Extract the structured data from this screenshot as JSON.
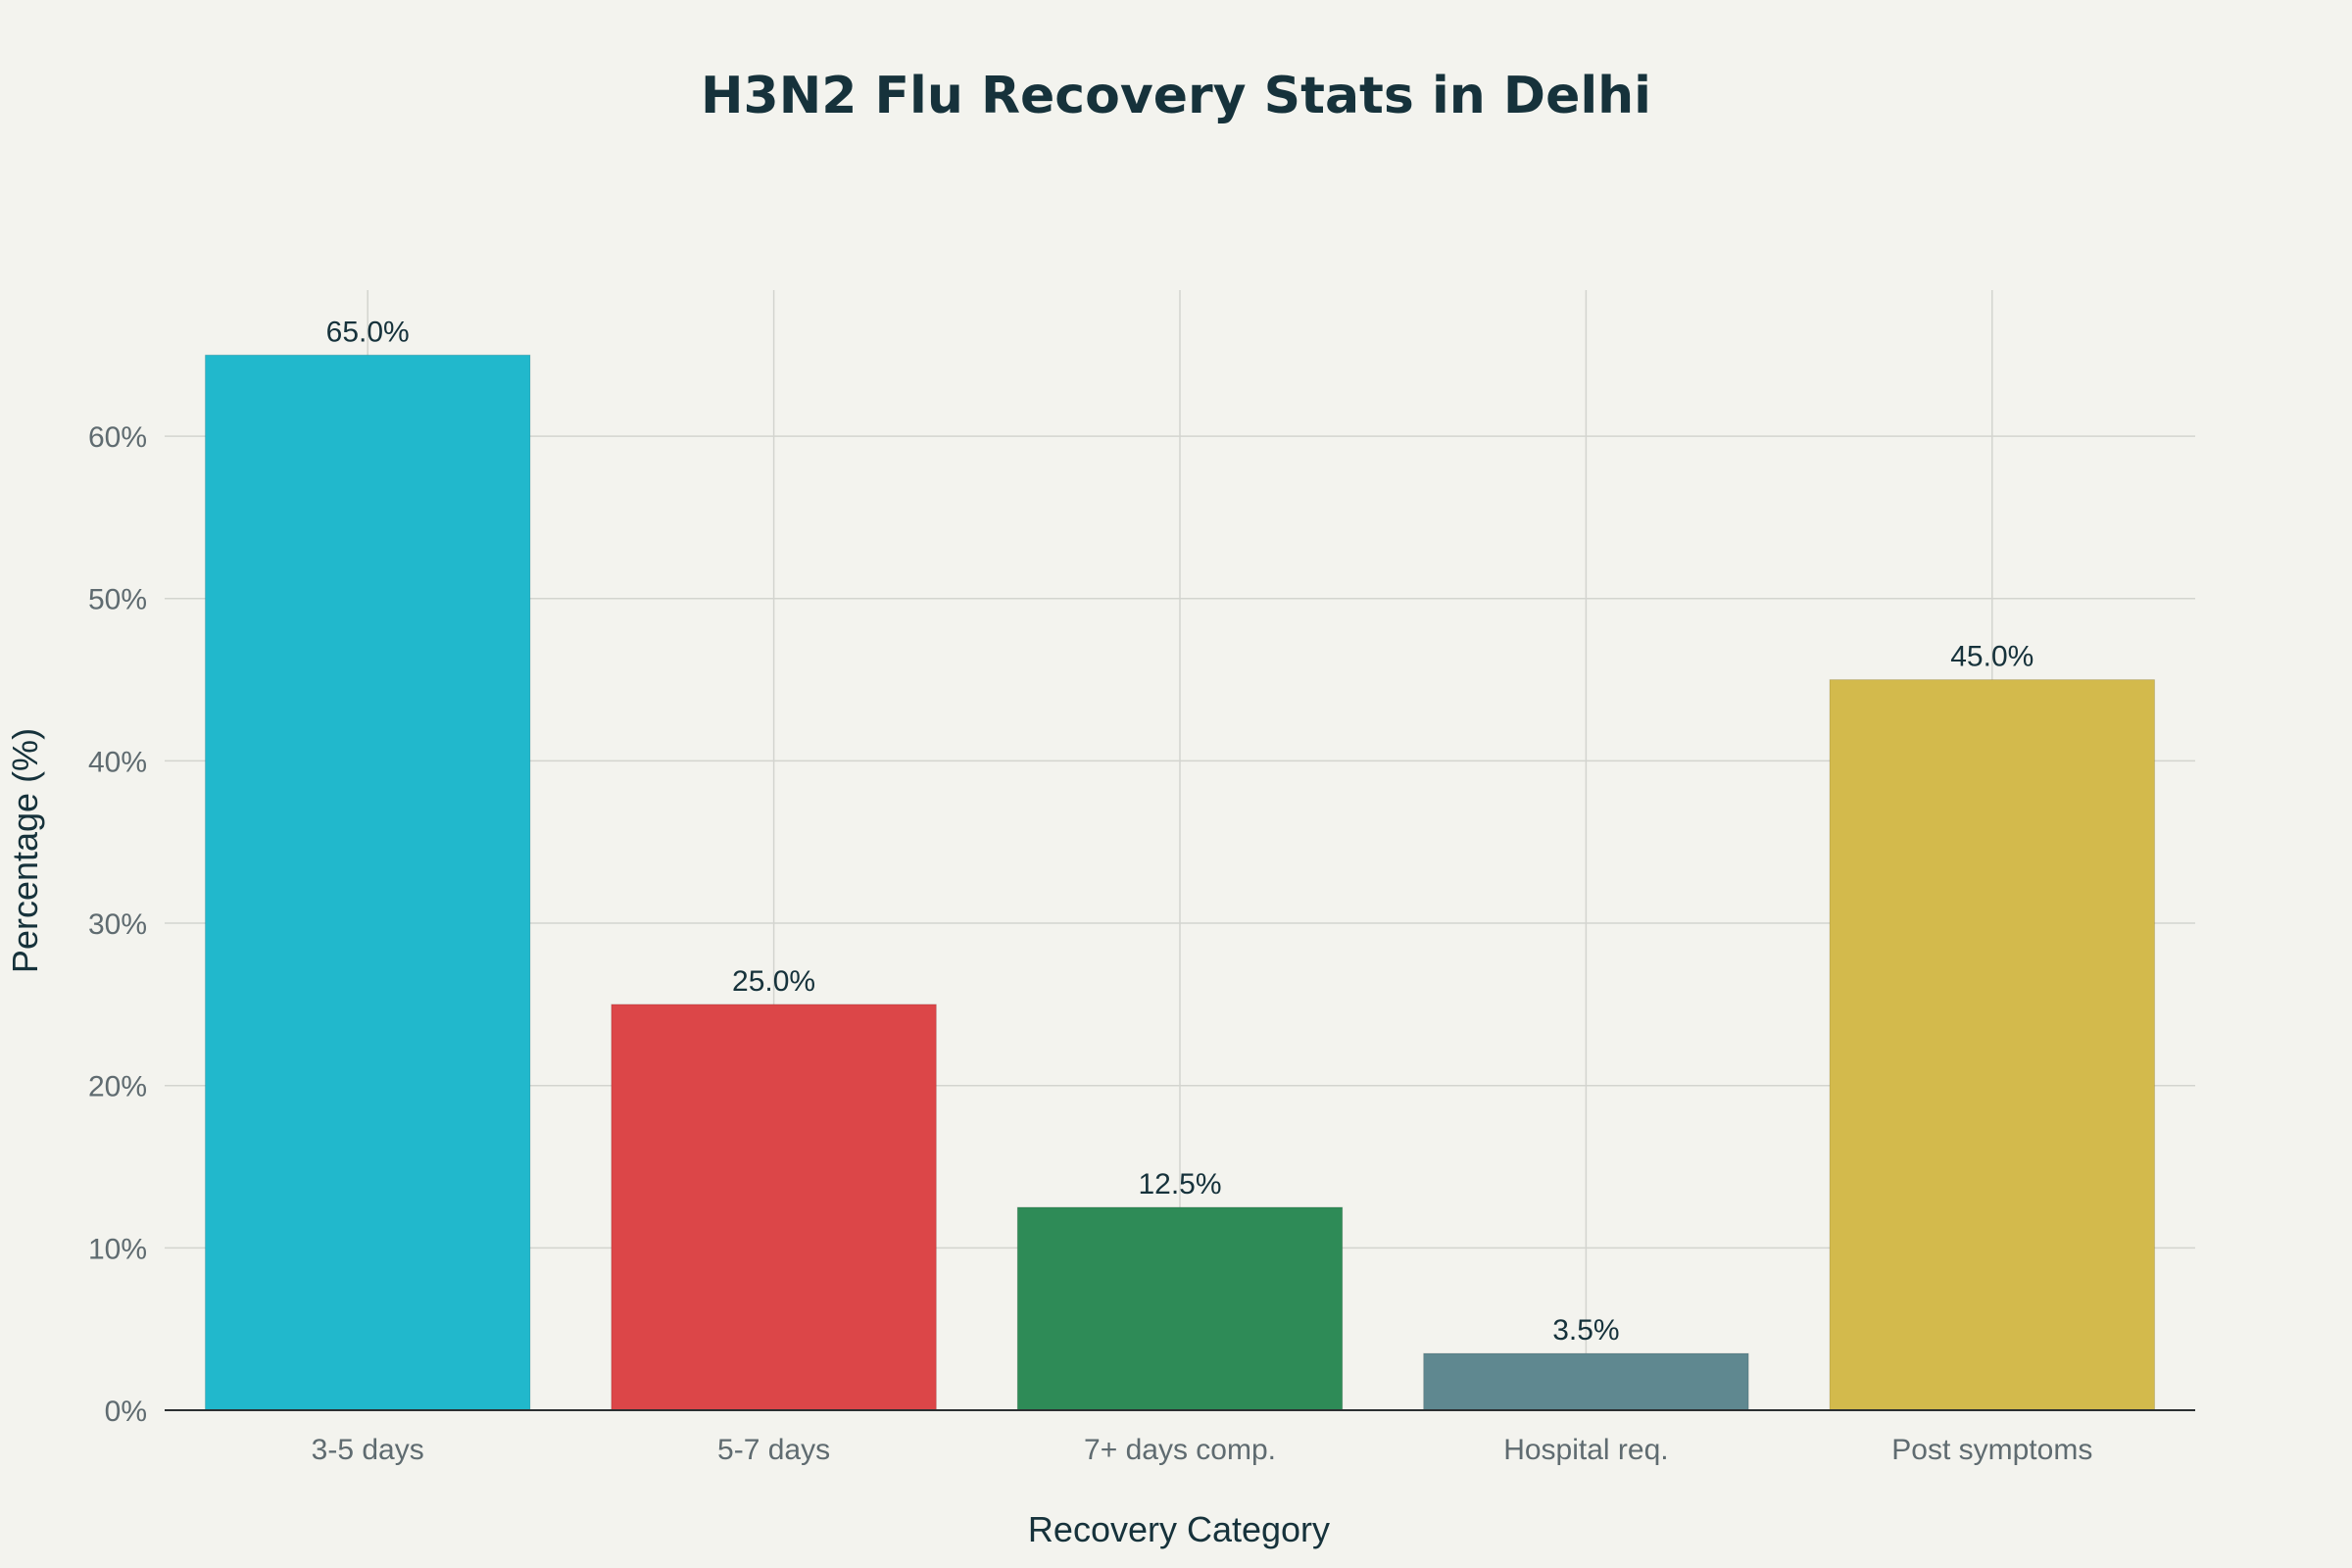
{
  "chart_data": {
    "type": "bar",
    "title": "H3N2 Flu Recovery Stats in Delhi",
    "xlabel": "Recovery Category",
    "ylabel": "Percentage (%)",
    "categories": [
      "3-5 days",
      "5-7 days",
      "7+ days comp.",
      "Hospital req.",
      "Post symptoms"
    ],
    "values": [
      65.0,
      25.0,
      12.5,
      3.5,
      45.0
    ],
    "data_labels": [
      "65.0%",
      "25.0%",
      "12.5%",
      "3.5%",
      "45.0%"
    ],
    "colors": [
      "#21b8cc",
      "#dc4648",
      "#2e8b57",
      "#5f8890",
      "#d3ba4c"
    ],
    "ylim": [
      0,
      69
    ],
    "yticks": [
      0,
      10,
      20,
      30,
      40,
      50,
      60
    ],
    "ytick_labels": [
      "0%",
      "10%",
      "20%",
      "30%",
      "40%",
      "50%",
      "60%"
    ],
    "grid": true,
    "legend": "none"
  }
}
